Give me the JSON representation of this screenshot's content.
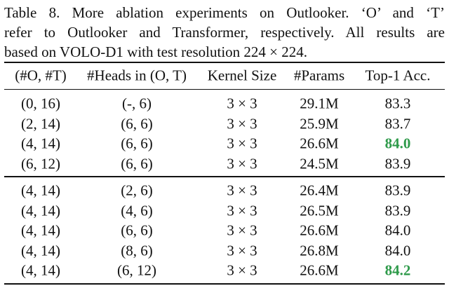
{
  "caption": [
    "Table 8. More ablation experiments on Outlooker. ‘O’ and ‘T’",
    "refer to Outlooker and Transformer, respectively. All results are",
    "based on VOLO-D1 with test resolution 224 × 224."
  ],
  "table": {
    "header": [
      "(#O, #T)",
      "#Heads in (O, T)",
      "Kernel Size",
      "#Params",
      "Top-1 Acc."
    ],
    "groups": [
      [
        [
          "(0, 16)",
          "(-, 6)",
          "3 × 3",
          "29.1M",
          "83.3"
        ],
        [
          "(2, 14)",
          "(6, 6)",
          "3 × 3",
          "25.9M",
          "83.7"
        ],
        [
          "(4, 14)",
          "(6, 6)",
          "3 × 3",
          "26.6M",
          "84.0"
        ],
        [
          "(6, 12)",
          "(6, 6)",
          "3 × 3",
          "24.5M",
          "83.9"
        ]
      ],
      [
        [
          "(4, 14)",
          "(2, 6)",
          "3 × 3",
          "26.4M",
          "83.9"
        ],
        [
          "(4, 14)",
          "(4, 6)",
          "3 × 3",
          "26.5M",
          "83.9"
        ],
        [
          "(4, 14)",
          "(6, 6)",
          "3 × 3",
          "26.6M",
          "84.0"
        ],
        [
          "(4, 14)",
          "(8, 6)",
          "3 × 3",
          "26.8M",
          "84.0"
        ],
        [
          "(4, 14)",
          "(6, 12)",
          "3 × 3",
          "26.6M",
          "84.2"
        ]
      ]
    ]
  }
}
